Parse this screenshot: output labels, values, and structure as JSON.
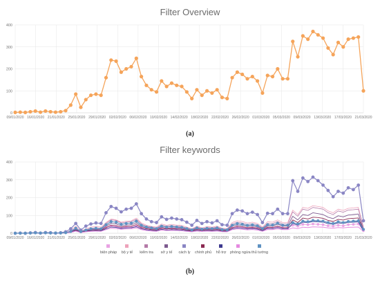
{
  "colors": {
    "overview": "#f5a45a",
    "grid": "#e6e6e6",
    "axis": "#c8c8c8",
    "tick_text": "#777777",
    "series": [
      "#e9a3e3",
      "#eea3bb",
      "#b57aa8",
      "#7d5a8f",
      "#8a86c4",
      "#8c2a52",
      "#3e3a8f",
      "#e58ae0",
      "#5f92c2"
    ]
  },
  "chart_data": [
    {
      "type": "line",
      "title": "Filter Overview",
      "caption": "(a)",
      "ylim": [
        0,
        400
      ],
      "yticks": [
        0,
        100,
        200,
        300,
        400
      ],
      "xticks": [
        "09/01/2020",
        "16/01/2020",
        "21/01/2020",
        "25/01/2020",
        "29/01/2020",
        "02/02/2020",
        "06/02/2020",
        "10/02/2020",
        "14/02/2020",
        "18/02/2020",
        "22/02/2020",
        "26/02/2020",
        "01/03/2020",
        "05/03/2020",
        "09/03/2020",
        "13/03/2020",
        "17/03/2020",
        "21/03/2020"
      ],
      "grid": true,
      "series": [
        {
          "values": [
            2,
            3,
            2,
            5,
            8,
            3,
            8,
            5,
            3,
            5,
            10,
            35,
            85,
            25,
            60,
            80,
            85,
            80,
            160,
            240,
            235,
            185,
            200,
            210,
            248,
            165,
            125,
            105,
            95,
            145,
            120,
            135,
            125,
            120,
            95,
            65,
            105,
            80,
            100,
            90,
            105,
            70,
            65,
            160,
            185,
            175,
            155,
            165,
            145,
            90,
            170,
            165,
            200,
            155,
            155,
            325,
            255,
            350,
            335,
            370,
            355,
            340,
            295,
            265,
            320,
            300,
            335,
            340,
            345,
            100
          ]
        }
      ]
    },
    {
      "type": "line",
      "title": "Filter keywords",
      "caption": "(b)",
      "ylim": [
        0,
        400
      ],
      "yticks": [
        0,
        100,
        200,
        300,
        400
      ],
      "xticks": [
        "09/01/2020",
        "16/01/2020",
        "21/01/2020",
        "25/01/2020",
        "29/01/2020",
        "02/02/2020",
        "06/02/2020",
        "10/02/2020",
        "14/02/2020",
        "18/02/2020",
        "22/02/2020",
        "26/02/2020",
        "01/03/2020",
        "05/03/2020",
        "09/03/2020",
        "13/03/2020",
        "17/03/2020",
        "21/03/2020"
      ],
      "grid": true,
      "legend_position": "bottom",
      "series": [
        {
          "name": "biện pháp",
          "values": [
            0,
            1,
            0,
            2,
            3,
            1,
            2,
            2,
            1,
            2,
            5,
            10,
            25,
            8,
            15,
            20,
            22,
            20,
            35,
            40,
            38,
            30,
            35,
            35,
            40,
            30,
            25,
            22,
            20,
            30,
            25,
            28,
            25,
            25,
            20,
            15,
            22,
            18,
            20,
            18,
            22,
            15,
            15,
            30,
            35,
            32,
            28,
            30,
            28,
            18,
            30,
            30,
            35,
            30,
            30,
            45,
            40,
            50,
            48,
            52,
            50,
            48,
            42,
            40,
            45,
            42,
            48,
            50,
            52,
            15
          ]
        },
        {
          "name": "bộ y tế",
          "values": [
            0,
            1,
            0,
            2,
            3,
            1,
            3,
            2,
            1,
            2,
            4,
            15,
            40,
            12,
            25,
            35,
            38,
            35,
            60,
            80,
            75,
            62,
            68,
            70,
            85,
            58,
            45,
            38,
            35,
            52,
            45,
            50,
            46,
            44,
            35,
            25,
            40,
            30,
            38,
            34,
            40,
            28,
            26,
            60,
            70,
            66,
            58,
            62,
            55,
            35,
            65,
            62,
            75,
            60,
            60,
            130,
            105,
            145,
            140,
            155,
            150,
            145,
            125,
            115,
            135,
            128,
            140,
            142,
            145,
            35
          ]
        },
        {
          "name": "kiểm tra",
          "values": [
            0,
            0,
            0,
            1,
            2,
            1,
            2,
            1,
            1,
            1,
            3,
            12,
            30,
            10,
            20,
            28,
            30,
            28,
            55,
            75,
            72,
            58,
            62,
            65,
            78,
            52,
            40,
            34,
            30,
            46,
            40,
            44,
            40,
            38,
            30,
            22,
            35,
            26,
            32,
            30,
            35,
            24,
            22,
            52,
            62,
            58,
            50,
            54,
            48,
            30,
            56,
            54,
            66,
            52,
            52,
            120,
            95,
            135,
            128,
            145,
            140,
            135,
            115,
            105,
            125,
            118,
            130,
            132,
            135,
            30
          ]
        },
        {
          "name": "sở y tế",
          "values": [
            0,
            0,
            0,
            1,
            1,
            0,
            1,
            1,
            0,
            1,
            2,
            8,
            22,
            7,
            14,
            20,
            22,
            20,
            40,
            55,
            52,
            42,
            46,
            48,
            58,
            38,
            30,
            25,
            22,
            34,
            28,
            32,
            30,
            28,
            22,
            16,
            26,
            20,
            24,
            22,
            26,
            18,
            16,
            40,
            46,
            44,
            38,
            40,
            36,
            22,
            42,
            40,
            50,
            40,
            40,
            95,
            75,
            105,
            100,
            115,
            110,
            105,
            90,
            82,
            98,
            92,
            102,
            105,
            108,
            20
          ]
        },
        {
          "name": "cách ly",
          "values": [
            0,
            1,
            0,
            2,
            4,
            1,
            4,
            3,
            1,
            3,
            8,
            25,
            55,
            18,
            40,
            52,
            58,
            55,
            115,
            150,
            140,
            120,
            135,
            140,
            165,
            110,
            80,
            65,
            60,
            92,
            78,
            85,
            80,
            76,
            62,
            45,
            72,
            55,
            65,
            58,
            70,
            48,
            45,
            110,
            130,
            125,
            110,
            118,
            105,
            60,
            112,
            110,
            135,
            110,
            110,
            295,
            235,
            310,
            290,
            315,
            295,
            270,
            240,
            205,
            235,
            225,
            255,
            245,
            270,
            70
          ]
        },
        {
          "name": "chính phủ",
          "values": [
            0,
            0,
            0,
            1,
            1,
            0,
            1,
            1,
            0,
            1,
            2,
            6,
            18,
            5,
            12,
            16,
            18,
            16,
            32,
            45,
            42,
            35,
            38,
            40,
            48,
            32,
            25,
            20,
            18,
            28,
            24,
            26,
            24,
            23,
            18,
            13,
            21,
            16,
            20,
            18,
            21,
            14,
            13,
            32,
            38,
            36,
            31,
            33,
            29,
            18,
            34,
            33,
            40,
            32,
            32,
            75,
            60,
            85,
            80,
            90,
            88,
            84,
            72,
            66,
            78,
            74,
            82,
            84,
            86,
            18
          ]
        },
        {
          "name": "hỗ trợ",
          "values": [
            0,
            0,
            0,
            1,
            1,
            0,
            1,
            1,
            0,
            1,
            2,
            5,
            15,
            4,
            10,
            14,
            15,
            14,
            25,
            35,
            33,
            27,
            30,
            31,
            37,
            25,
            19,
            16,
            14,
            22,
            18,
            20,
            19,
            18,
            14,
            10,
            16,
            12,
            15,
            14,
            16,
            11,
            10,
            25,
            30,
            28,
            24,
            26,
            23,
            14,
            27,
            26,
            32,
            25,
            25,
            55,
            45,
            62,
            60,
            66,
            64,
            62,
            54,
            50,
            58,
            55,
            61,
            62,
            64,
            14
          ]
        },
        {
          "name": "phòng ngừa",
          "values": [
            0,
            0,
            0,
            1,
            1,
            0,
            1,
            1,
            0,
            1,
            2,
            4,
            12,
            4,
            8,
            11,
            12,
            11,
            20,
            28,
            26,
            22,
            24,
            25,
            30,
            20,
            15,
            13,
            11,
            18,
            15,
            16,
            15,
            14,
            11,
            8,
            13,
            10,
            12,
            11,
            13,
            9,
            8,
            20,
            24,
            22,
            19,
            21,
            18,
            11,
            21,
            20,
            25,
            20,
            20,
            30,
            26,
            34,
            32,
            36,
            35,
            34,
            30,
            28,
            32,
            30,
            33,
            34,
            35,
            10
          ]
        },
        {
          "name": "thủ tướng",
          "values": [
            0,
            0,
            0,
            1,
            2,
            1,
            2,
            1,
            1,
            1,
            3,
            10,
            28,
            9,
            18,
            25,
            28,
            25,
            48,
            65,
            62,
            50,
            55,
            57,
            68,
            45,
            35,
            30,
            26,
            40,
            34,
            38,
            35,
            33,
            26,
            19,
            30,
            23,
            28,
            26,
            30,
            21,
            19,
            45,
            54,
            50,
            44,
            47,
            42,
            26,
            48,
            46,
            56,
            45,
            45,
            60,
            52,
            68,
            65,
            72,
            70,
            68,
            60,
            55,
            64,
            60,
            66,
            68,
            70,
            22
          ]
        }
      ]
    }
  ]
}
